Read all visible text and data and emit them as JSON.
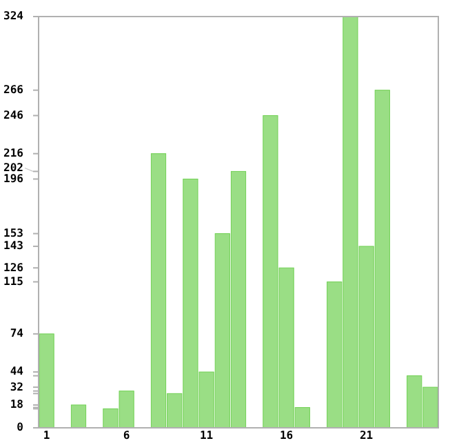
{
  "chart_data": {
    "type": "bar",
    "categories": [
      "1",
      null,
      null,
      null,
      null,
      "6",
      null,
      null,
      null,
      null,
      "11",
      null,
      null,
      null,
      null,
      "16",
      null,
      null,
      null,
      null,
      "21",
      null,
      null,
      null,
      null
    ],
    "values": [
      74,
      0,
      18,
      0,
      15,
      29,
      0,
      216,
      27,
      196,
      44,
      153,
      202,
      0,
      246,
      126,
      16,
      0,
      115,
      324,
      143,
      266,
      0,
      41,
      32
    ],
    "color": "#9ade85",
    "ylim": [
      0,
      324
    ],
    "yticks": [
      0,
      {
        "value": 15,
        "label": null
      },
      {
        "value": 16,
        "label": null
      },
      18,
      {
        "value": 27,
        "label": null
      },
      {
        "value": 29,
        "label": null
      },
      32,
      {
        "value": 41,
        "label": null
      },
      44,
      74,
      115,
      126,
      143,
      153,
      196,
      202,
      216,
      246,
      266,
      324
    ],
    "grid": false
  }
}
